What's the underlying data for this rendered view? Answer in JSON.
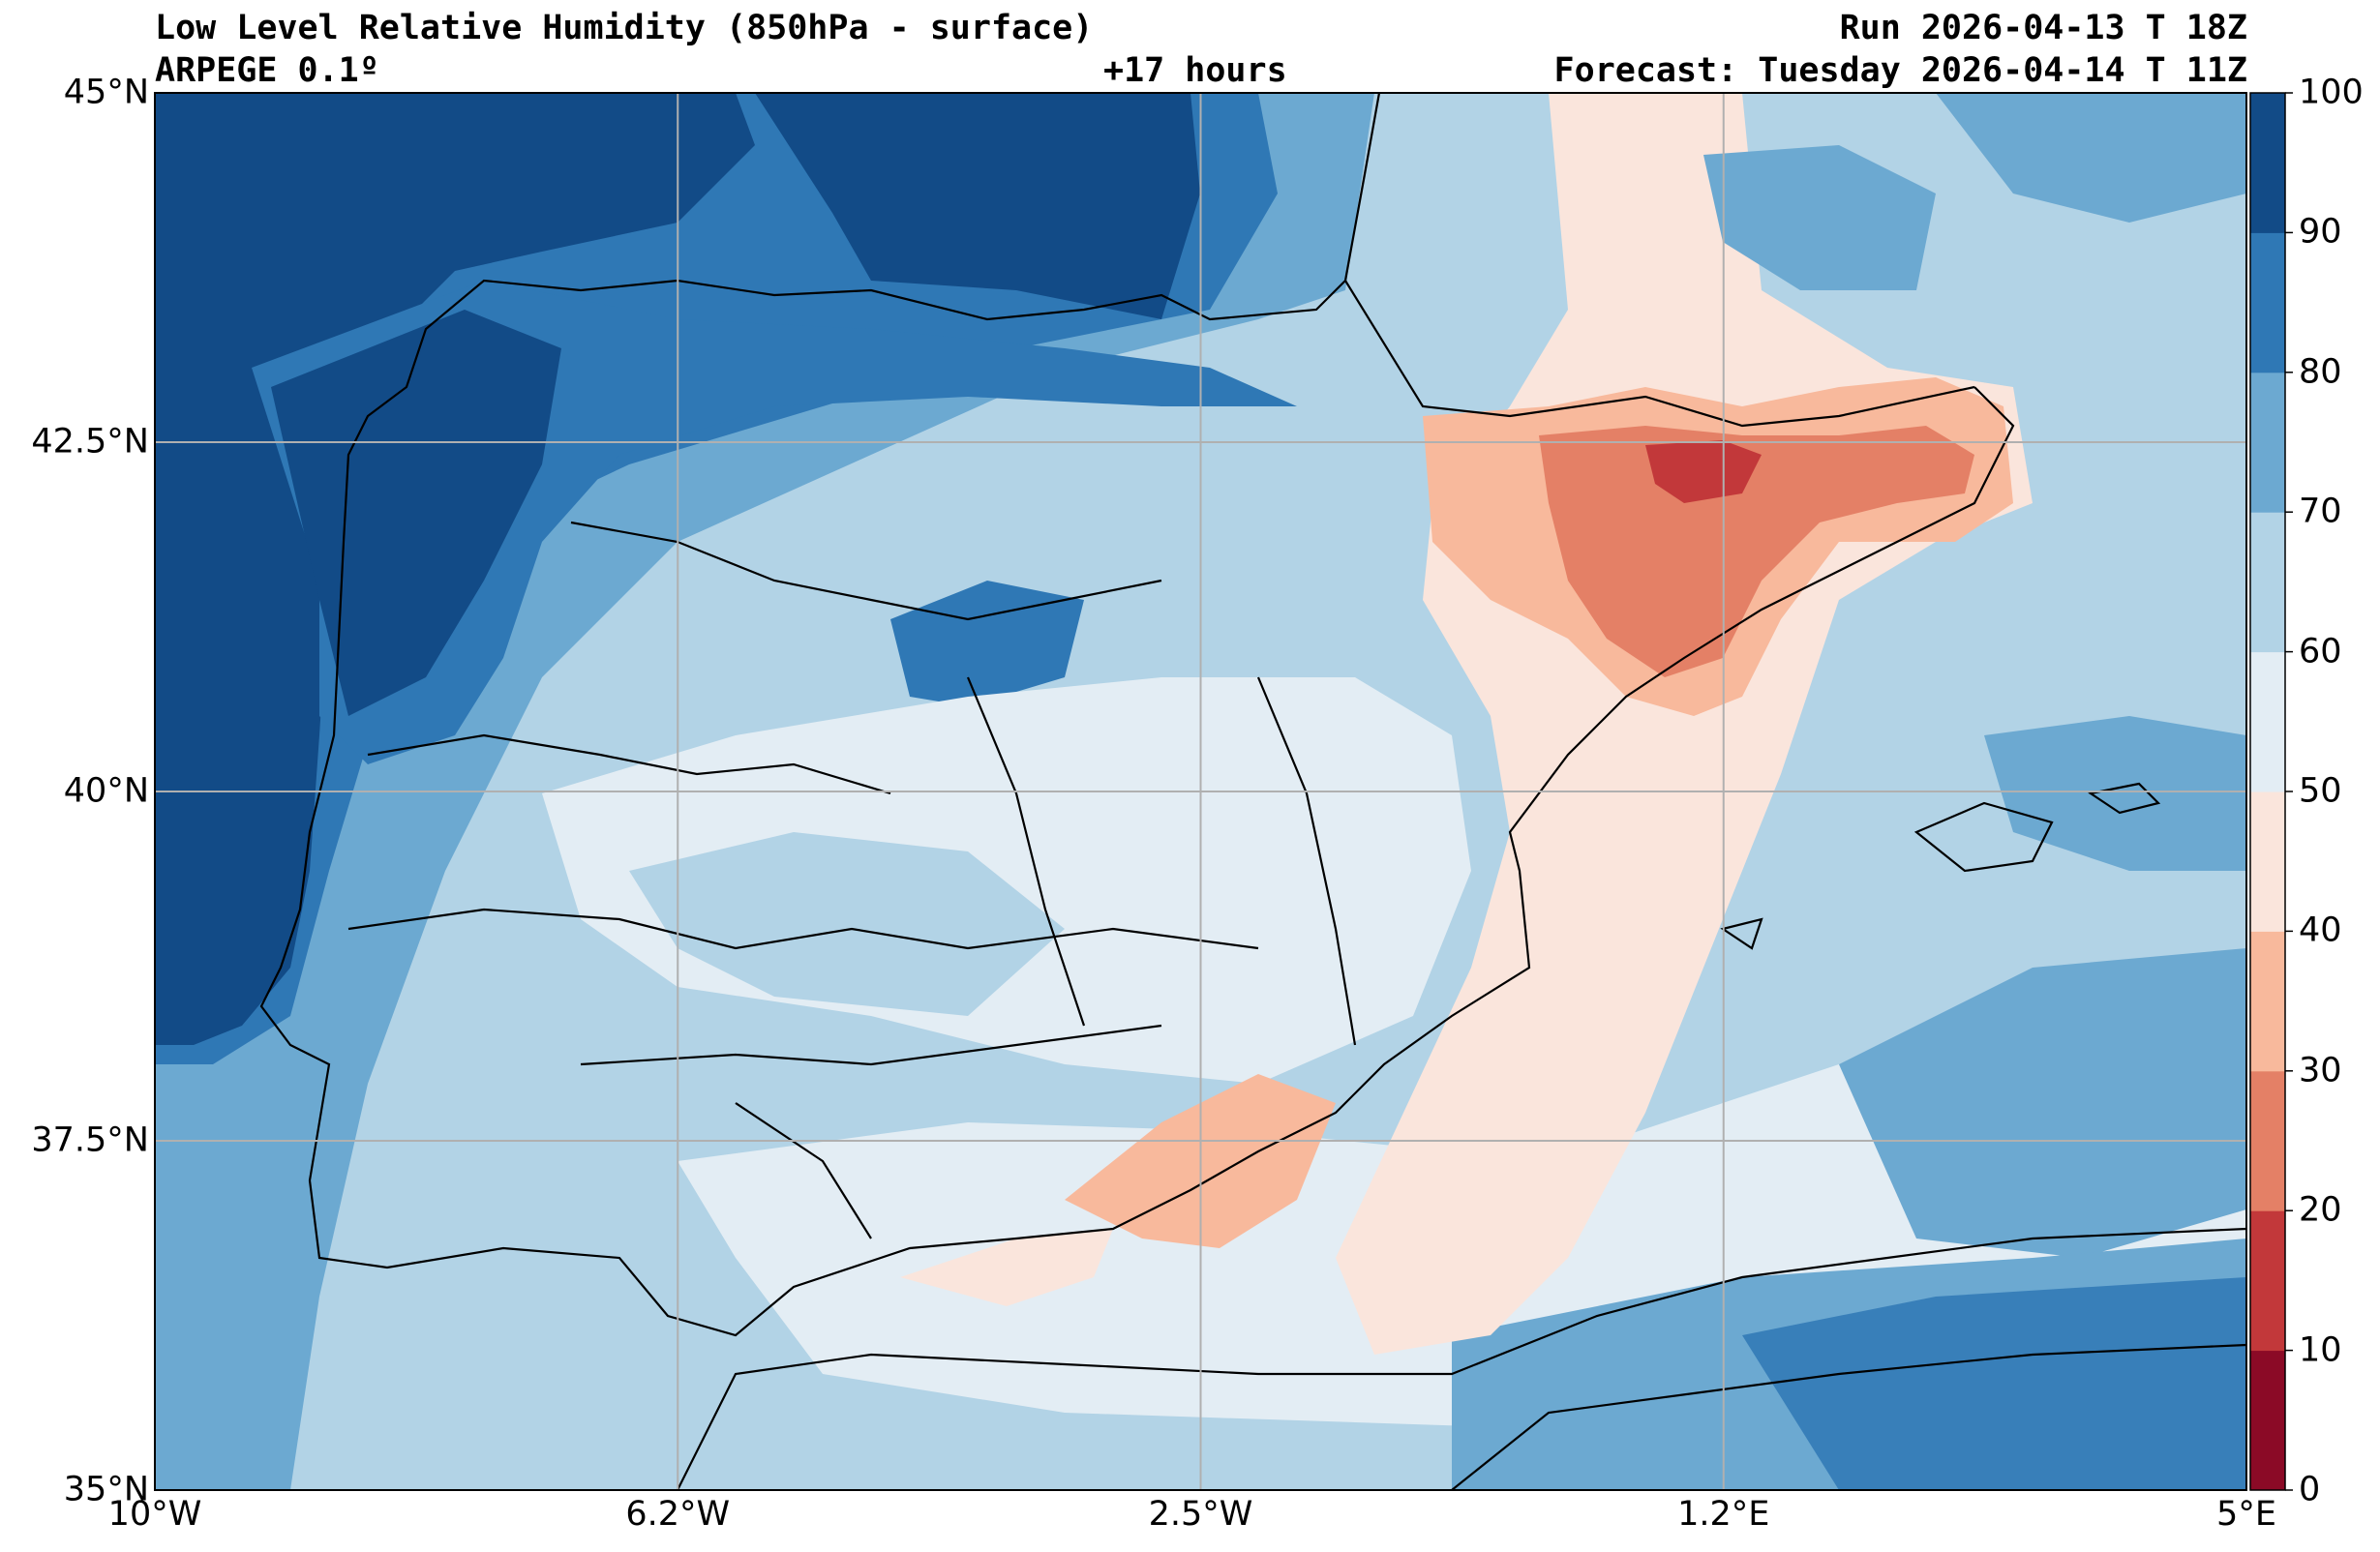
{
  "header": {
    "title": "Low Level Relative Humidity (850hPa - surface)",
    "model": "ARPEGE 0.1º",
    "lead_time": "+17 hours",
    "run": "Run 2026-04-13 T 18Z",
    "forecast": "Forecast: Tuesday 2026-04-14 T 11Z"
  },
  "map": {
    "extent": {
      "lon": [
        -10,
        5
      ],
      "lat": [
        35,
        45
      ]
    },
    "lon_ticks": [
      {
        "value": -10,
        "label": "10°W"
      },
      {
        "value": -6.25,
        "label": "6.2°W"
      },
      {
        "value": -2.5,
        "label": "2.5°W"
      },
      {
        "value": 1.25,
        "label": "1.2°E"
      },
      {
        "value": 5,
        "label": "5°E"
      }
    ],
    "lat_ticks": [
      {
        "value": 45,
        "label": "45°N"
      },
      {
        "value": 42.5,
        "label": "42.5°N"
      },
      {
        "value": 40,
        "label": "40°N"
      },
      {
        "value": 37.5,
        "label": "37.5°N"
      },
      {
        "value": 35,
        "label": "35°N"
      }
    ],
    "gridlines": true
  },
  "colorbar": {
    "levels": [
      "0",
      "10",
      "20",
      "30",
      "40",
      "50",
      "60",
      "70",
      "80",
      "90",
      "100"
    ],
    "colors": [
      "#8b0a26",
      "#c2383a",
      "#e48066",
      "#f8b99c",
      "#fae5dc",
      "#e3edf4",
      "#b2d3e6",
      "#6ca9d1",
      "#2f78b5",
      "#124b87"
    ]
  }
}
